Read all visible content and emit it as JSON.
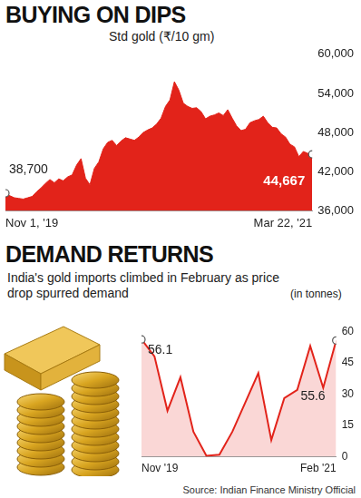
{
  "chart_data": [
    {
      "type": "area",
      "title": "BUYING ON DIPS",
      "subtitle": "Std gold (₹/10 gm)",
      "categories": [
        "Nov 1, '19",
        null,
        null,
        null,
        null,
        null,
        null,
        null,
        null,
        null,
        null,
        null,
        null,
        null,
        null,
        null,
        null,
        null,
        null,
        null,
        null,
        null,
        null,
        null,
        null,
        null,
        null,
        null,
        null,
        null,
        null,
        null,
        null,
        null,
        null,
        null,
        null,
        null,
        null,
        null,
        null,
        null,
        null,
        null,
        null,
        null,
        null,
        null,
        null,
        null,
        null,
        null,
        null,
        null,
        null,
        null,
        null,
        null,
        null,
        null,
        null,
        null,
        null,
        null,
        null,
        null,
        null,
        null,
        null,
        "Mar 22, '21"
      ],
      "values": [
        38700,
        38300,
        38000,
        37900,
        37800,
        38000,
        38200,
        38900,
        39500,
        40200,
        40800,
        40300,
        40900,
        40600,
        41200,
        41500,
        43000,
        44000,
        41000,
        40000,
        42500,
        43500,
        45500,
        46500,
        46800,
        46000,
        46700,
        47200,
        47000,
        46800,
        47300,
        48000,
        48400,
        48700,
        49300,
        50200,
        52000,
        53000,
        55800,
        54500,
        52500,
        52000,
        51700,
        51800,
        51200,
        50100,
        50500,
        50700,
        51000,
        50600,
        51500,
        50200,
        49000,
        48300,
        48500,
        49500,
        49800,
        50000,
        50500,
        49500,
        48800,
        48700,
        47800,
        47300,
        46200,
        45800,
        44300,
        45100,
        44800,
        44667
      ],
      "value_labels": [
        "38,700",
        null,
        null,
        null,
        null,
        null,
        null,
        null,
        null,
        null,
        null,
        null,
        null,
        null,
        null,
        null,
        null,
        null,
        null,
        null,
        null,
        null,
        null,
        null,
        null,
        null,
        null,
        null,
        null,
        null,
        null,
        null,
        null,
        null,
        null,
        null,
        null,
        null,
        null,
        null,
        null,
        null,
        null,
        null,
        null,
        null,
        null,
        null,
        null,
        null,
        null,
        null,
        null,
        null,
        null,
        null,
        null,
        null,
        null,
        null,
        null,
        null,
        null,
        null,
        null,
        null,
        null,
        null,
        null,
        "44,667"
      ],
      "data_labels": true,
      "color": "#e2231a",
      "ylim": [
        36000,
        60000
      ],
      "yticks": [
        {
          "value": 36000,
          "label": "36,000"
        },
        {
          "value": 42000,
          "label": "42,000"
        },
        {
          "value": 48000,
          "label": "48,000"
        },
        {
          "value": 54000,
          "label": "54,000"
        },
        {
          "value": 60000,
          "label": "60,000"
        }
      ],
      "grid": false
    },
    {
      "type": "area",
      "title": "DEMAND RETURNS",
      "subtitle": "India's gold imports climbed in February as price drop spurred demand",
      "ylabel": "(in tonnes)",
      "categories": [
        "Nov '19",
        null,
        null,
        null,
        null,
        null,
        null,
        null,
        null,
        null,
        null,
        null,
        null,
        null,
        null,
        "Feb '21"
      ],
      "values": [
        56.1,
        48,
        22,
        38,
        12,
        0.5,
        1,
        12,
        26,
        40,
        8,
        28,
        32,
        53,
        33,
        55.6
      ],
      "value_labels": [
        "56.1",
        null,
        null,
        null,
        null,
        null,
        null,
        null,
        null,
        null,
        null,
        null,
        null,
        null,
        null,
        "55.6"
      ],
      "data_labels": true,
      "color": "#e2231a",
      "ylim": [
        0,
        60
      ],
      "yticks": [
        0,
        15,
        30,
        45,
        60
      ],
      "grid": false,
      "source": "Source: Indian Finance Ministry Official"
    }
  ]
}
